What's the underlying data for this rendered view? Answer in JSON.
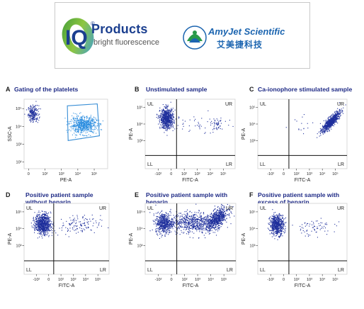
{
  "logos": {
    "iq_mark": "IQ",
    "iq_reg": "®",
    "iq_wordmark": "Products",
    "iq_tagline": "bright fluorescence",
    "amyjet_name": "AmyJet Scientific",
    "amyjet_chinese": "艾美捷科技"
  },
  "colors": {
    "title": "#1f2b86",
    "points_dark": "#1e2f9c",
    "points_light": "#2f8fe0",
    "gate": "#3a8fd6"
  },
  "chart_data": [
    {
      "id": "A",
      "type": "scatter",
      "title": "Gating of the platelets",
      "xlabel": "PE-A",
      "ylabel": "SSC-A",
      "x_ticks": [
        "0",
        "10²",
        "10³",
        "10⁴",
        "10⁵"
      ],
      "y_ticks": [
        "10⁵",
        "10⁴",
        "10³",
        "10²"
      ],
      "x_range": [
        -0.4,
        5.2
      ],
      "y_range": [
        1.7,
        5.4
      ],
      "clusters": [
        {
          "cx": 0.2,
          "cy": 4.65,
          "sx": 0.18,
          "sy": 0.22,
          "n": 220,
          "shade": "dark"
        },
        {
          "cx": 3.55,
          "cy": 4.05,
          "sx": 0.45,
          "sy": 0.22,
          "n": 650,
          "shade": "light"
        }
      ],
      "gate": [
        [
          2.5,
          5.05
        ],
        [
          4.5,
          5.15
        ],
        [
          4.65,
          3.45
        ],
        [
          2.55,
          3.2
        ]
      ]
    },
    {
      "id": "B",
      "type": "scatter",
      "title": "Unstimulated sample",
      "xlabel": "FITC-A",
      "ylabel": "PE-A",
      "x_ticks": [
        "-10²",
        "0",
        "10²",
        "10³",
        "10⁴",
        "10⁵"
      ],
      "y_ticks": [
        "10⁵",
        "10⁴",
        "10³"
      ],
      "quadrants": [
        "UL",
        "UR",
        "LL",
        "LR"
      ],
      "x_range": [
        -2.4,
        5.2
      ],
      "y_range": [
        1.4,
        5.6
      ],
      "divider_x": 0.25,
      "divider_y": 2.2,
      "clusters": [
        {
          "cx": -0.6,
          "cy": 4.45,
          "sx": 0.28,
          "sy": 0.3,
          "n": 720,
          "shade": "dark"
        },
        {
          "cx": 2.4,
          "cy": 4.15,
          "sx": 1.2,
          "sy": 0.3,
          "n": 45,
          "shade": "dark"
        },
        {
          "cx": 3.6,
          "cy": 4.05,
          "sx": 0.25,
          "sy": 0.18,
          "n": 40,
          "shade": "dark"
        }
      ]
    },
    {
      "id": "C",
      "type": "scatter",
      "title": "Ca-ionophore stimulated sample",
      "xlabel": "FITC-A",
      "ylabel": "PE-A",
      "x_ticks": [
        "-10²",
        "0",
        "10²",
        "10³",
        "10⁴",
        "10⁵"
      ],
      "y_ticks": [
        "10⁵",
        "10⁴",
        "10³"
      ],
      "quadrants": [
        "UL",
        "UR",
        "LL",
        "LR"
      ],
      "x_range": [
        -2.4,
        5.2
      ],
      "y_range": [
        1.4,
        5.6
      ],
      "divider_x": 0.25,
      "divider_y": 2.2,
      "clusters": [
        {
          "cx": 3.8,
          "cy": 4.25,
          "sx": 0.38,
          "sy": 0.3,
          "n": 750,
          "shade": "dark",
          "corr": 0.85
        },
        {
          "cx": 1.6,
          "cy": 4.1,
          "sx": 0.6,
          "sy": 0.25,
          "n": 15,
          "shade": "dark"
        }
      ]
    },
    {
      "id": "D",
      "type": "scatter",
      "title": "Positive patient sample",
      "title_line2": "without heparin",
      "xlabel": "FITC-A",
      "ylabel": "PE-A",
      "x_ticks": [
        "-10²",
        "0",
        "10²",
        "10³",
        "10⁴",
        "10⁵"
      ],
      "y_ticks": [
        "10⁵",
        "10⁴",
        "10³"
      ],
      "quadrants": [
        "UL",
        "UR",
        "LL",
        "LR"
      ],
      "x_range": [
        -2.4,
        5.2
      ],
      "y_range": [
        1.4,
        5.6
      ],
      "divider_x": 0.25,
      "divider_y": 2.2,
      "clusters": [
        {
          "cx": -0.75,
          "cy": 4.4,
          "sx": 0.35,
          "sy": 0.3,
          "n": 780,
          "shade": "dark"
        },
        {
          "cx": 2.2,
          "cy": 4.3,
          "sx": 1.1,
          "sy": 0.3,
          "n": 130,
          "shade": "dark"
        }
      ]
    },
    {
      "id": "E",
      "type": "scatter",
      "title": "Positive patient sample with",
      "title_line2": "heparin",
      "xlabel": "FITC-A",
      "ylabel": "PE-A",
      "x_ticks": [
        "-10²",
        "0",
        "10²",
        "10³",
        "10⁴",
        "10⁵"
      ],
      "y_ticks": [
        "10⁵",
        "10⁴",
        "10³"
      ],
      "quadrants": [
        "UL",
        "UR",
        "LL",
        "LR"
      ],
      "x_range": [
        -2.4,
        5.2
      ],
      "y_range": [
        1.4,
        5.6
      ],
      "divider_x": 0.25,
      "divider_y": 2.2,
      "clusters": [
        {
          "cx": -0.85,
          "cy": 4.45,
          "sx": 0.35,
          "sy": 0.3,
          "n": 520,
          "shade": "dark"
        },
        {
          "cx": 1.5,
          "cy": 4.5,
          "sx": 0.9,
          "sy": 0.3,
          "n": 600,
          "shade": "dark"
        },
        {
          "cx": 3.6,
          "cy": 4.7,
          "sx": 0.45,
          "sy": 0.32,
          "n": 700,
          "shade": "dark",
          "corr": 0.6
        }
      ]
    },
    {
      "id": "F",
      "type": "scatter",
      "title": "Positive patient sample with",
      "title_line2": "excess of heparin",
      "xlabel": "FITC-A",
      "ylabel": "PE-A",
      "x_ticks": [
        "-10²",
        "0",
        "10²",
        "10³",
        "10⁴",
        "10⁵"
      ],
      "y_ticks": [
        "10⁵",
        "10⁴",
        "10³"
      ],
      "quadrants": [
        "UL",
        "UR",
        "LL",
        "LR"
      ],
      "x_range": [
        -2.4,
        5.2
      ],
      "y_range": [
        1.4,
        5.6
      ],
      "divider_x": 0.25,
      "divider_y": 2.2,
      "clusters": [
        {
          "cx": -0.8,
          "cy": 4.35,
          "sx": 0.3,
          "sy": 0.3,
          "n": 600,
          "shade": "dark"
        },
        {
          "cx": 2.3,
          "cy": 4.2,
          "sx": 0.9,
          "sy": 0.25,
          "n": 70,
          "shade": "dark"
        }
      ]
    }
  ]
}
